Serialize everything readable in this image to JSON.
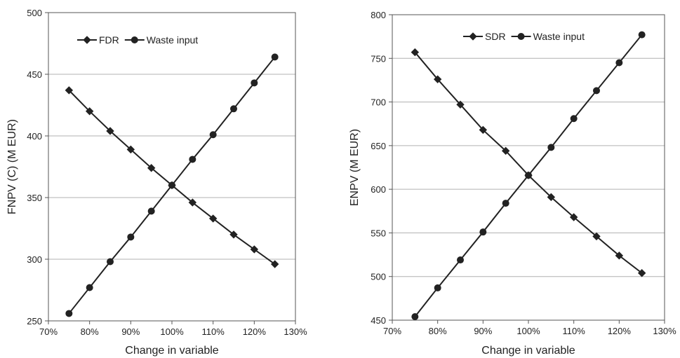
{
  "chart_data": [
    {
      "type": "line",
      "title": "",
      "xlabel": "Change in variable",
      "ylabel": "FNPV (C) (M EUR)",
      "xlim": [
        70,
        130
      ],
      "ylim": [
        250,
        500
      ],
      "x_ticks": [
        70,
        80,
        90,
        100,
        110,
        120,
        130
      ],
      "x_tick_labels": [
        "70%",
        "80%",
        "90%",
        "100%",
        "110%",
        "120%",
        "130%"
      ],
      "y_ticks": [
        250,
        300,
        350,
        400,
        450,
        500
      ],
      "y_tick_labels": [
        "250",
        "300",
        "350",
        "400",
        "450",
        "500"
      ],
      "grid": "horizontal",
      "legend_position": "top-left",
      "x": [
        75,
        80,
        85,
        90,
        95,
        100,
        105,
        110,
        115,
        120,
        125
      ],
      "series": [
        {
          "name": "FDR",
          "marker": "diamond",
          "color": "#222222",
          "values": [
            437,
            420,
            404,
            389,
            374,
            360,
            346,
            333,
            320,
            308,
            296
          ]
        },
        {
          "name": "Waste input",
          "marker": "circle",
          "color": "#222222",
          "values": [
            256,
            277,
            298,
            318,
            339,
            360,
            381,
            401,
            422,
            443,
            464
          ]
        }
      ]
    },
    {
      "type": "line",
      "title": "",
      "xlabel": "Change in variable",
      "ylabel": "ENPV (M EUR)",
      "xlim": [
        70,
        130
      ],
      "ylim": [
        450,
        800
      ],
      "x_ticks": [
        70,
        80,
        90,
        100,
        110,
        120,
        130
      ],
      "x_tick_labels": [
        "70%",
        "80%",
        "90%",
        "100%",
        "110%",
        "120%",
        "130%"
      ],
      "y_ticks": [
        450,
        500,
        550,
        600,
        650,
        700,
        750,
        800
      ],
      "y_tick_labels": [
        "450",
        "500",
        "550",
        "600",
        "650",
        "700",
        "750",
        "800"
      ],
      "grid": "horizontal",
      "legend_position": "top-center",
      "x": [
        75,
        80,
        85,
        90,
        95,
        100,
        105,
        110,
        115,
        120,
        125
      ],
      "series": [
        {
          "name": "SDR",
          "marker": "diamond",
          "color": "#222222",
          "values": [
            757,
            726,
            697,
            668,
            644,
            616,
            591,
            568,
            546,
            524,
            504
          ]
        },
        {
          "name": "Waste input",
          "marker": "circle",
          "color": "#222222",
          "values": [
            454,
            487,
            519,
            551,
            584,
            616,
            648,
            681,
            713,
            745,
            777
          ]
        }
      ]
    }
  ]
}
